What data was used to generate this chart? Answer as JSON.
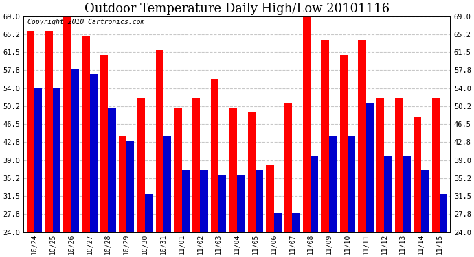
{
  "title": "Outdoor Temperature Daily High/Low 20101116",
  "copyright": "Copyright 2010 Cartronics.com",
  "labels": [
    "10/24",
    "10/25",
    "10/26",
    "10/27",
    "10/28",
    "10/29",
    "10/30",
    "10/31",
    "11/01",
    "11/02",
    "11/03",
    "11/04",
    "11/05",
    "11/06",
    "11/07",
    "11/08",
    "11/09",
    "11/10",
    "11/11",
    "11/12",
    "11/13",
    "11/14",
    "11/15"
  ],
  "highs": [
    66,
    66,
    69,
    65,
    61,
    44,
    52,
    62,
    50,
    52,
    56,
    50,
    49,
    38,
    51,
    69,
    64,
    61,
    64,
    52,
    52,
    48,
    52
  ],
  "lows": [
    54,
    54,
    58,
    57,
    50,
    43,
    32,
    44,
    37,
    37,
    36,
    36,
    37,
    28,
    28,
    40,
    44,
    44,
    51,
    40,
    40,
    37,
    32
  ],
  "high_color": "#FF0000",
  "low_color": "#0000CC",
  "bg_color": "#FFFFFF",
  "grid_color": "#C8C8C8",
  "yticks": [
    24.0,
    27.8,
    31.5,
    35.2,
    39.0,
    42.8,
    46.5,
    50.2,
    54.0,
    57.8,
    61.5,
    65.2,
    69.0
  ],
  "ymin": 24.0,
  "ymax": 69.0,
  "title_fontsize": 13,
  "copyright_fontsize": 7,
  "bar_width": 0.42
}
